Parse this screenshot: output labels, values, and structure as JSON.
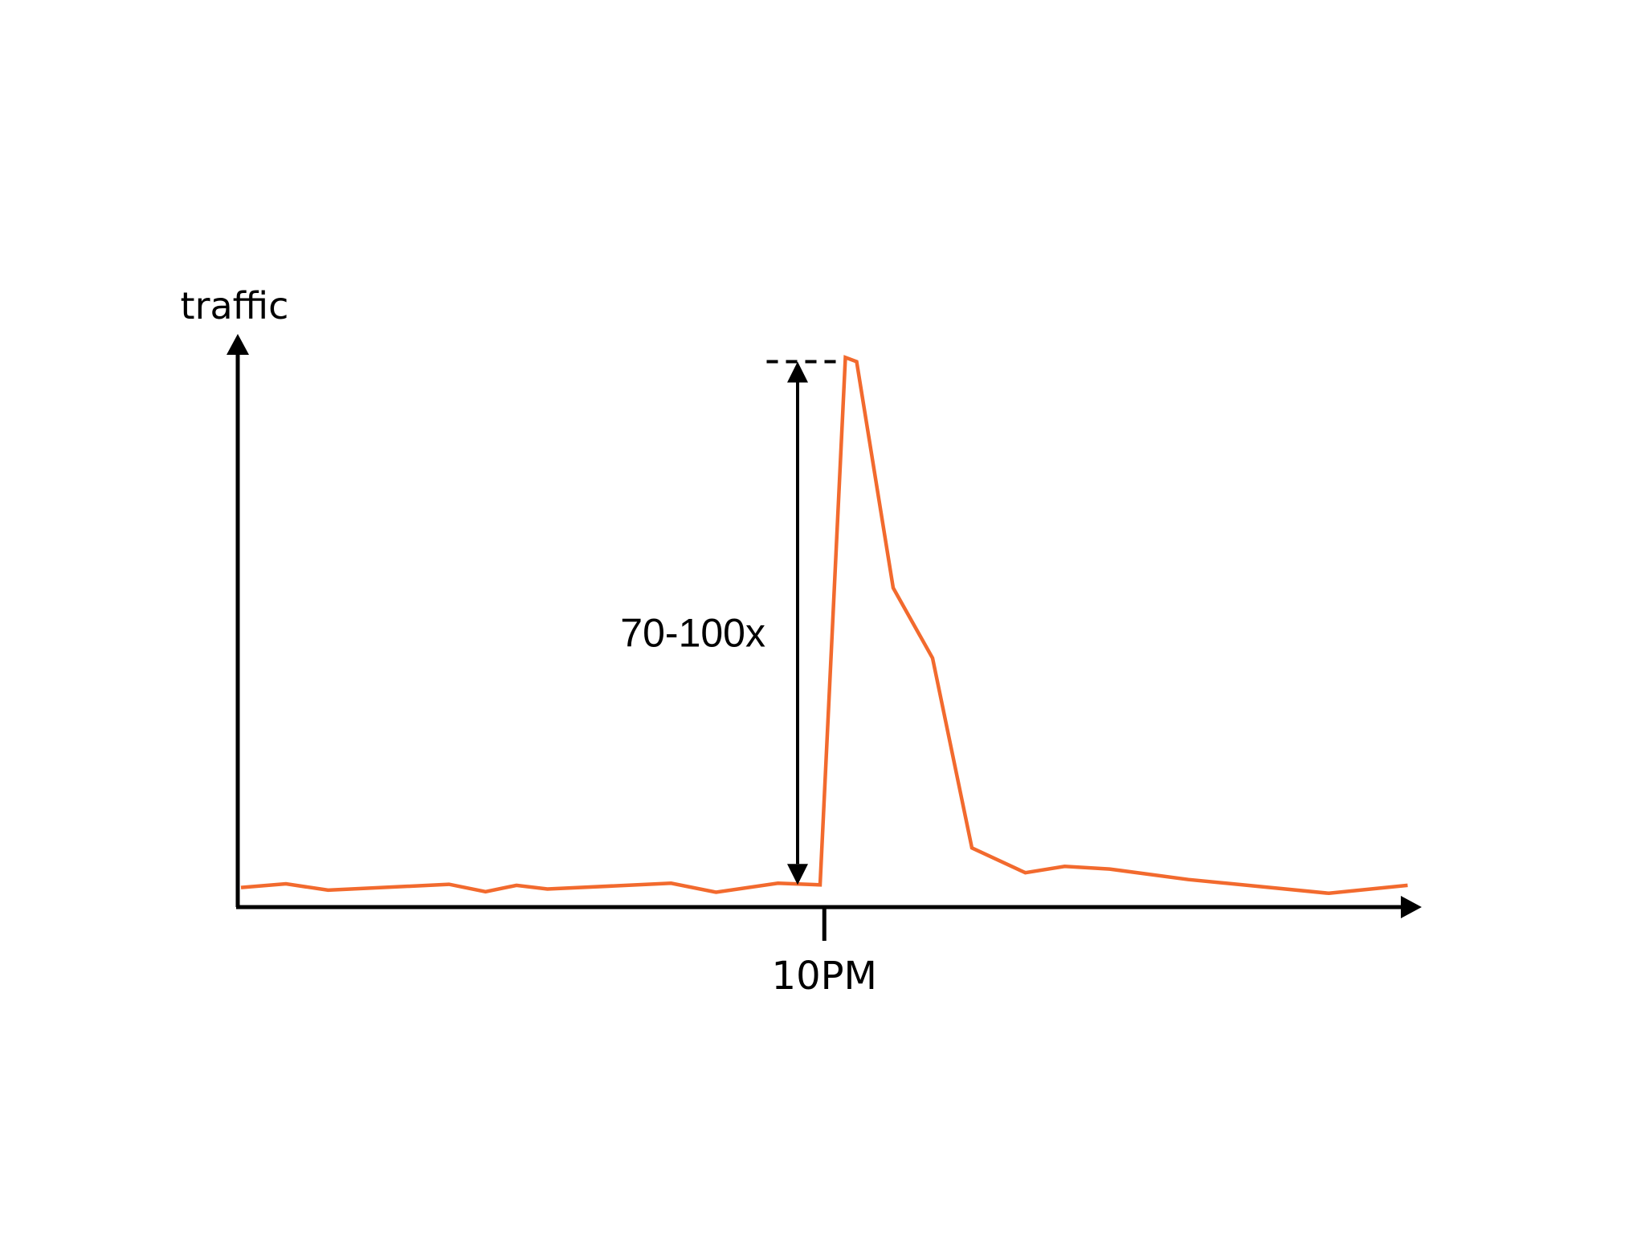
{
  "chart_data": {
    "type": "line",
    "title": "",
    "xlabel": "",
    "ylabel": "traffic",
    "x_tick_labels": [
      {
        "x": 20.75,
        "label": "10PM"
      }
    ],
    "xlim": [
      0,
      41.5
    ],
    "ylim": [
      0,
      104
    ],
    "grid": false,
    "legend": "none",
    "series": [
      {
        "color": "#f26a2e",
        "x": [
          0,
          1.6,
          3.1,
          7.4,
          8.7,
          9.8,
          10.9,
          15.3,
          16.9,
          19.1,
          20.6,
          21.5,
          21.9,
          23.2,
          24.6,
          26.0,
          27.9,
          29.3,
          30.9,
          33.7,
          38.7,
          41.5
        ],
        "y": [
          2.5,
          3.2,
          2.0,
          3.1,
          1.7,
          2.9,
          2.2,
          3.3,
          1.6,
          3.3,
          3.0,
          103,
          102.2,
          59.3,
          46.0,
          10.0,
          5.3,
          6.5,
          6.0,
          4.0,
          1.4,
          2.9
        ]
      }
    ],
    "annotations": [
      {
        "type": "double-arrow",
        "x": 19.8,
        "y_from": 3.0,
        "y_to": 102.2,
        "label": "70-100x"
      },
      {
        "type": "dashed-reference",
        "x_from": 18.7,
        "x_to": 21.3,
        "y": 102.2
      }
    ]
  }
}
